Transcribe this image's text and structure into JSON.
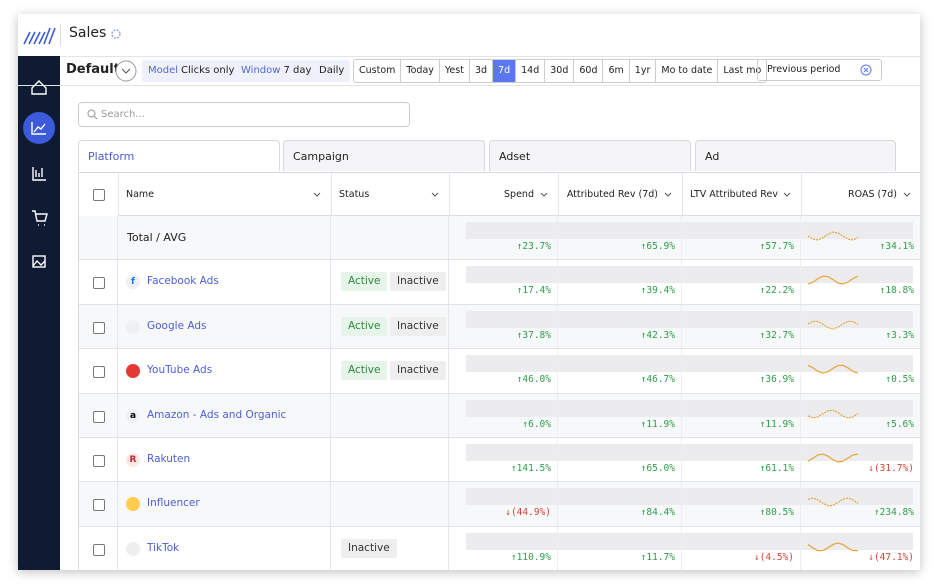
{
  "header": {
    "title": "Sales"
  },
  "toolbar": {
    "view": "Default",
    "model": {
      "label": "Model",
      "value": "Clicks only"
    },
    "window": {
      "label": "Window",
      "value": "7 day"
    },
    "granularity": "Daily",
    "ranges": [
      "Custom",
      "Today",
      "Yest",
      "3d",
      "7d",
      "14d",
      "30d",
      "60d",
      "6m",
      "1yr",
      "Mo to date",
      "Last mo"
    ],
    "active_range": "7d",
    "compare": "Previous period"
  },
  "search": {
    "placeholder": "Search..."
  },
  "tabs": [
    "Platform",
    "Campaign",
    "Adset",
    "Ad"
  ],
  "active_tab": "Platform",
  "table": {
    "columns": [
      "Name",
      "Status",
      "Spend",
      "Attributed Rev (7d)",
      "LTV Attributed Rev",
      "ROAS (7d)"
    ],
    "rows": [
      {
        "name": "Total / AVG",
        "changes": [
          "↑23.7%",
          "↑65.9%",
          "↑57.7%",
          "↑34.1%"
        ]
      },
      {
        "name": "Facebook Ads",
        "icon": "f",
        "statuses": [
          "Active",
          "Inactive"
        ],
        "changes": [
          "↑17.4%",
          "↑39.4%",
          "↑22.2%",
          "↑18.8%"
        ]
      },
      {
        "name": "Google Ads",
        "statuses": [
          "Active",
          "Inactive"
        ],
        "changes": [
          "↑37.8%",
          "↑42.3%",
          "↑32.7%",
          "↑3.3%"
        ]
      },
      {
        "name": "YouTube Ads",
        "statuses": [
          "Active",
          "Inactive"
        ],
        "changes": [
          "↑46.0%",
          "↑46.7%",
          "↑36.9%",
          "↑0.5%"
        ]
      },
      {
        "name": "Amazon - Ads and Organic",
        "icon": "a",
        "changes": [
          "↑6.0%",
          "↑11.9%",
          "↑11.9%",
          "↑5.6%"
        ]
      },
      {
        "name": "Rakuten",
        "icon": "R",
        "changes": [
          "↑141.5%",
          "↑65.0%",
          "↑61.1%",
          "↓(31.7%)"
        ]
      },
      {
        "name": "Influencer",
        "changes": [
          "↓(44.9%)",
          "↑84.4%",
          "↑80.5%",
          "↑234.8%"
        ]
      },
      {
        "name": "TikTok",
        "statuses": [
          "Inactive"
        ],
        "changes": [
          "↑110.9%",
          "↑11.7%",
          "↓(4.5%)",
          "↓(47.1%)"
        ]
      }
    ]
  }
}
